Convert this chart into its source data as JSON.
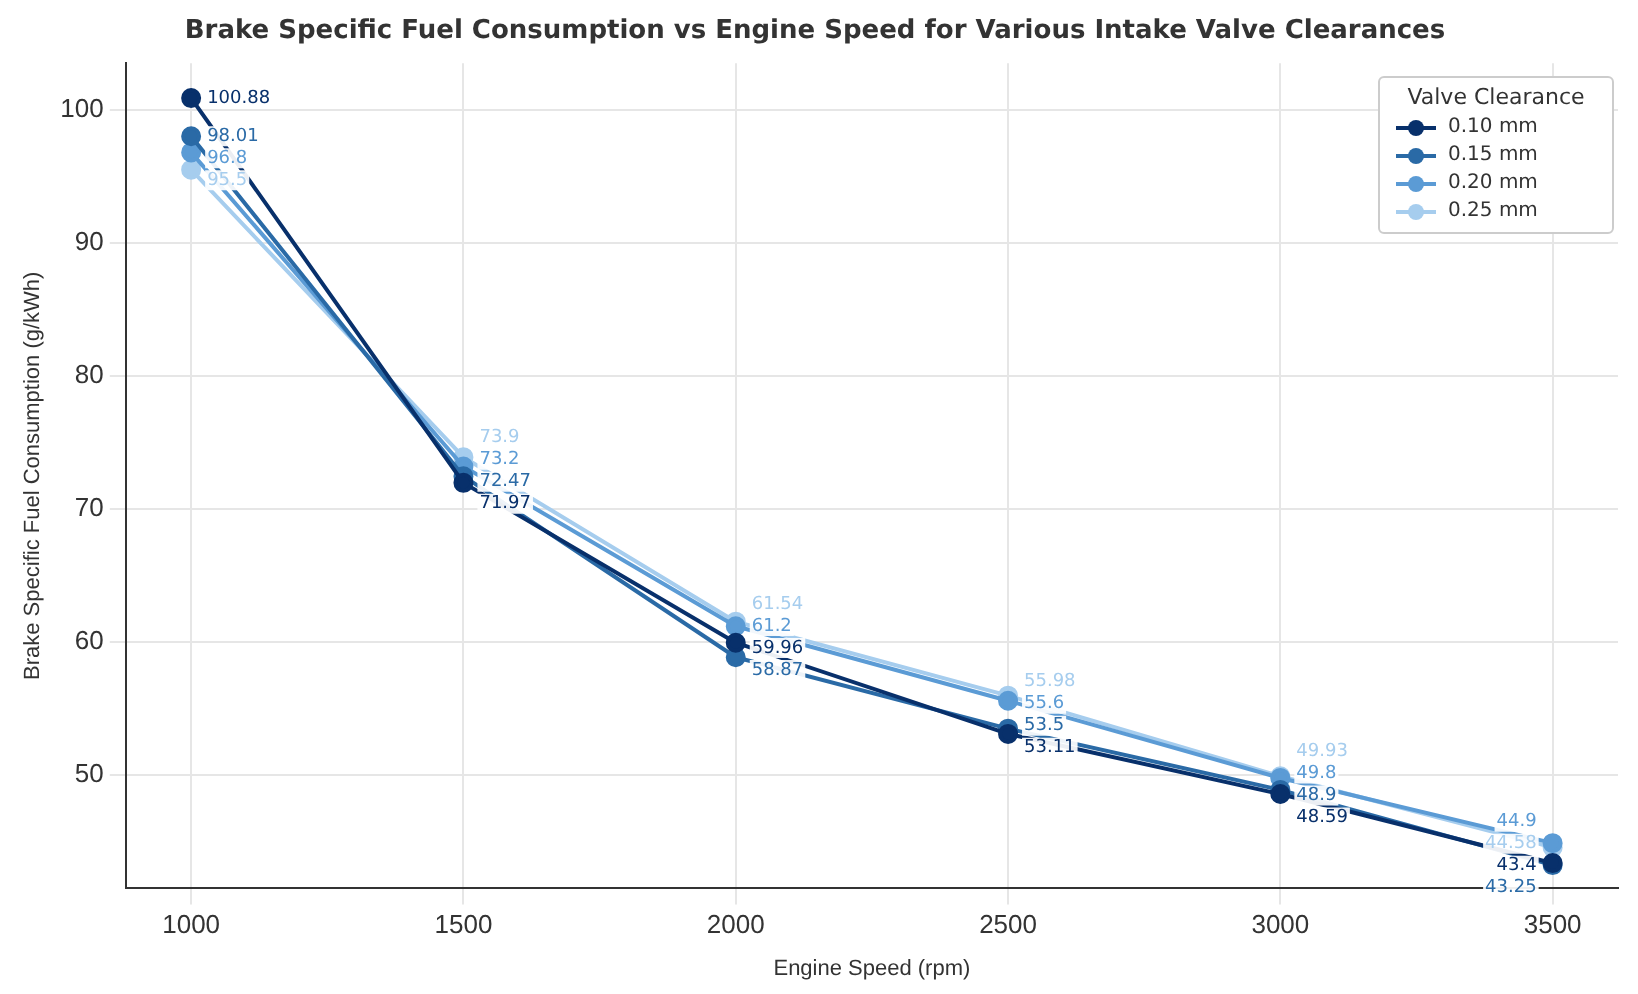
{
  "chart_data": {
    "type": "line",
    "title": "Brake Specific Fuel Consumption vs Engine Speed for Various Intake Valve Clearances",
    "xlabel": "Engine Speed (rpm)",
    "ylabel": "Brake Specific Fuel Consumption (g/kWh)",
    "legend_title": "Valve Clearance",
    "x": [
      1000,
      1500,
      2000,
      2500,
      3000,
      3500
    ],
    "series": [
      {
        "name": "0.10 mm",
        "color": "#08306b",
        "values": [
          100.88,
          71.97,
          59.96,
          53.11,
          48.59,
          43.4
        ]
      },
      {
        "name": "0.15 mm",
        "color": "#2a6aa6",
        "values": [
          98.01,
          72.47,
          58.87,
          53.5,
          48.9,
          43.25
        ]
      },
      {
        "name": "0.20 mm",
        "color": "#5b9bd5",
        "values": [
          96.8,
          73.2,
          61.2,
          55.6,
          49.8,
          44.9
        ]
      },
      {
        "name": "0.25 mm",
        "color": "#a6cdee",
        "values": [
          95.5,
          73.9,
          61.54,
          55.98,
          49.93,
          44.58
        ]
      }
    ],
    "xlim": [
      880,
      3620
    ],
    "xticks": [
      1000,
      1500,
      2000,
      2500,
      3000,
      3500
    ],
    "ylim": [
      41.5,
      103.5
    ],
    "yticks": [
      50,
      60,
      70,
      80,
      90,
      100
    ],
    "grid": true,
    "legend": "top right",
    "marker": "circle",
    "line_style": "solid",
    "data_labels": true
  }
}
